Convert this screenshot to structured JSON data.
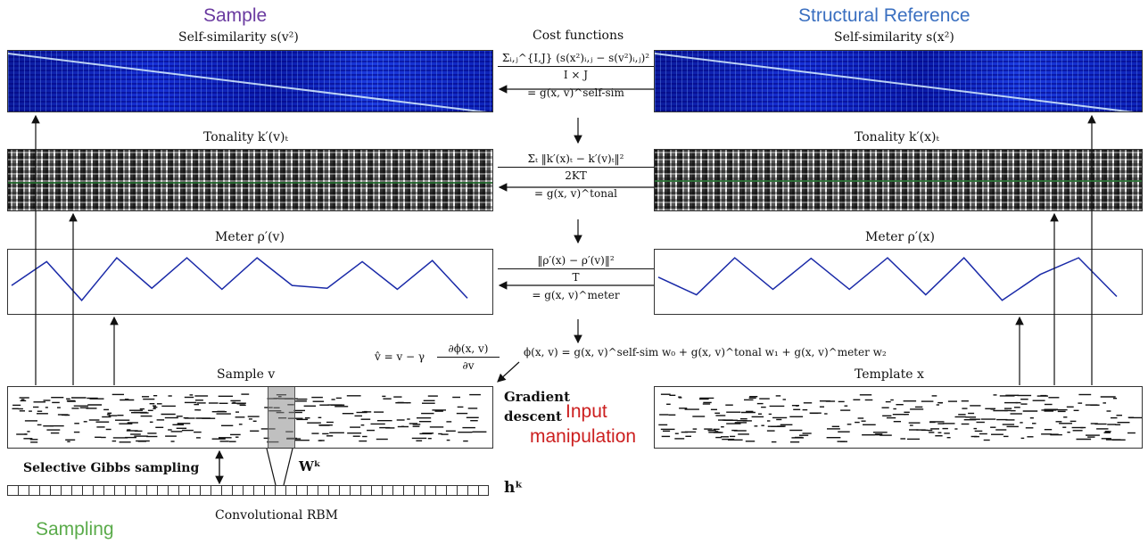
{
  "headers": {
    "sample": "Sample",
    "structural_reference": "Structural Reference",
    "sampling": "Sampling",
    "input_manipulation_1": "Input",
    "input_manipulation_2": "manipulation"
  },
  "left": {
    "self_sim": "Self-similarity  s(v²)",
    "tonality": "Tonality  k′(v)ₜ",
    "meter": "Meter  ρ′(v)",
    "sample": "Sample  v"
  },
  "right": {
    "self_sim": "Self-similarity  s(x²)",
    "tonality": "Tonality  k′(x)ₜ",
    "meter": "Meter  ρ′(x)",
    "template": "Template  x"
  },
  "center": {
    "title": "Cost functions",
    "selfsim_num": "Σᵢ,ⱼ^{I,J} (s(x²)ᵢ,ⱼ − s(v²)ᵢ,ⱼ)²",
    "selfsim_den": "I × J",
    "selfsim_eq": "= g(x, v)^self-sim",
    "tonal_num": "Σₜ ‖k′(x)ₜ − k′(v)ₜ‖²",
    "tonal_den": "2KT",
    "tonal_eq": "= g(x, v)^tonal",
    "meter_num": "‖ρ′(x) − ρ′(v)‖²",
    "meter_den": "T",
    "meter_eq": "= g(x, v)^meter",
    "phi": "ϕ(x, v) = g(x, v)^self-sim w₀ + g(x, v)^tonal w₁ + g(x, v)^meter w₂",
    "update_lhs": "v̂ = v − γ",
    "update_num": "∂ϕ(x, v)",
    "update_den": "∂v"
  },
  "bottom": {
    "gradient_1": "Gradient",
    "gradient_2": "descent",
    "gibbs": "Selective Gibbs sampling",
    "wk": "Wᵏ",
    "hk": "hᵏ",
    "crbm": "Convolutional RBM"
  },
  "colors": {
    "sample": "#6a3aa0",
    "structural_reference": "#3a6fc0",
    "sampling": "#5aab4a",
    "input_manipulation": "#cc1f1f",
    "meter_line": "#1a2aa8"
  },
  "meter_left": [
    0.55,
    0.12,
    0.82,
    0.05,
    0.6,
    0.05,
    0.62,
    0.05,
    0.55,
    0.6,
    0.12,
    0.62,
    0.1,
    0.78
  ],
  "meter_right": [
    0.4,
    0.72,
    0.05,
    0.62,
    0.06,
    0.62,
    0.05,
    0.72,
    0.05,
    0.82,
    0.35,
    0.05,
    0.75
  ]
}
